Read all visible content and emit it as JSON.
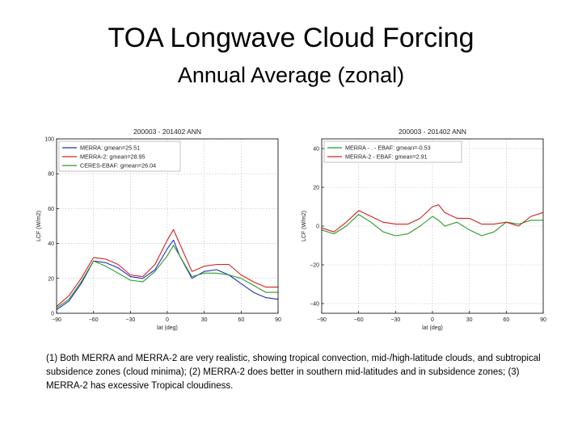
{
  "slide": {
    "title": "TOA Longwave Cloud Forcing",
    "subtitle": "Annual Average (zonal)",
    "caption": "(1) Both MERRA and MERRA-2 are very realistic, showing tropical convection, mid-/high-latitude clouds, and subtropical subsidence zones (cloud minima); (2) MERRA-2 does better in southern mid-latitudes and in subsidence zones; (3) MERRA-2 has excessive Tropical cloudiness."
  },
  "chart_data": [
    {
      "type": "line",
      "title": "200003 - 201402 ANN",
      "xlabel": "lat (deg)",
      "ylabel": "LCF (W/m2)",
      "xlim": [
        -90,
        90
      ],
      "ylim": [
        0,
        100
      ],
      "xticks": [
        -90,
        -60,
        -30,
        0,
        30,
        60,
        90
      ],
      "yticks": [
        0,
        20,
        40,
        60,
        80,
        100
      ],
      "grid": true,
      "legend": "top-left",
      "x": [
        -90,
        -80,
        -70,
        -60,
        -50,
        -40,
        -30,
        -20,
        -10,
        0,
        5,
        10,
        20,
        30,
        40,
        50,
        60,
        70,
        80,
        90
      ],
      "series": [
        {
          "name": "MERRA:  gmean=25.51",
          "color": "#1f2fbf",
          "values": [
            2,
            7,
            17,
            30,
            29,
            26,
            21,
            20,
            25,
            37,
            42,
            33,
            20,
            24,
            25,
            22,
            17,
            12,
            9,
            8
          ]
        },
        {
          "name": "MERRA-2:  gmean=28.95",
          "color": "#d62020",
          "values": [
            4,
            10,
            20,
            32,
            31,
            28,
            22,
            21,
            28,
            42,
            48,
            40,
            24,
            27,
            28,
            28,
            22,
            18,
            15,
            15
          ]
        },
        {
          "name": "CERES-EBAF: gmean=26.04",
          "color": "#2a9a2a",
          "values": [
            3,
            8,
            18,
            30,
            27,
            23,
            19,
            18,
            24,
            33,
            39,
            33,
            21,
            23,
            23,
            22,
            20,
            16,
            12,
            12
          ]
        }
      ]
    },
    {
      "type": "line",
      "title": "200003 - 201402 ANN",
      "xlabel": "lat (deg)",
      "ylabel": "LCF (W/m2)",
      "xlim": [
        -90,
        90
      ],
      "ylim": [
        -45,
        45
      ],
      "xticks": [
        -90,
        -60,
        -30,
        0,
        30,
        60,
        90
      ],
      "yticks": [
        -40,
        -20,
        0,
        20,
        40
      ],
      "grid": true,
      "legend": "top-left",
      "x": [
        -90,
        -80,
        -70,
        -60,
        -50,
        -40,
        -30,
        -20,
        -10,
        0,
        5,
        10,
        20,
        30,
        40,
        50,
        60,
        70,
        80,
        90
      ],
      "series": [
        {
          "name": "MERRA - . - EBAF: gmean=-0.53",
          "color": "#2a9a2a",
          "values": [
            -2,
            -4,
            0,
            6,
            2,
            -3,
            -5,
            -4,
            0,
            5,
            3,
            0,
            2,
            -2,
            -5,
            -3,
            2,
            1,
            3,
            3
          ]
        },
        {
          "name": "MERRA-2 - EBAF: gmean=2.91",
          "color": "#d62020",
          "values": [
            -1,
            -3,
            2,
            8,
            5,
            2,
            1,
            1,
            4,
            10,
            11,
            7,
            4,
            4,
            1,
            1,
            2,
            0,
            5,
            7
          ]
        }
      ]
    }
  ]
}
